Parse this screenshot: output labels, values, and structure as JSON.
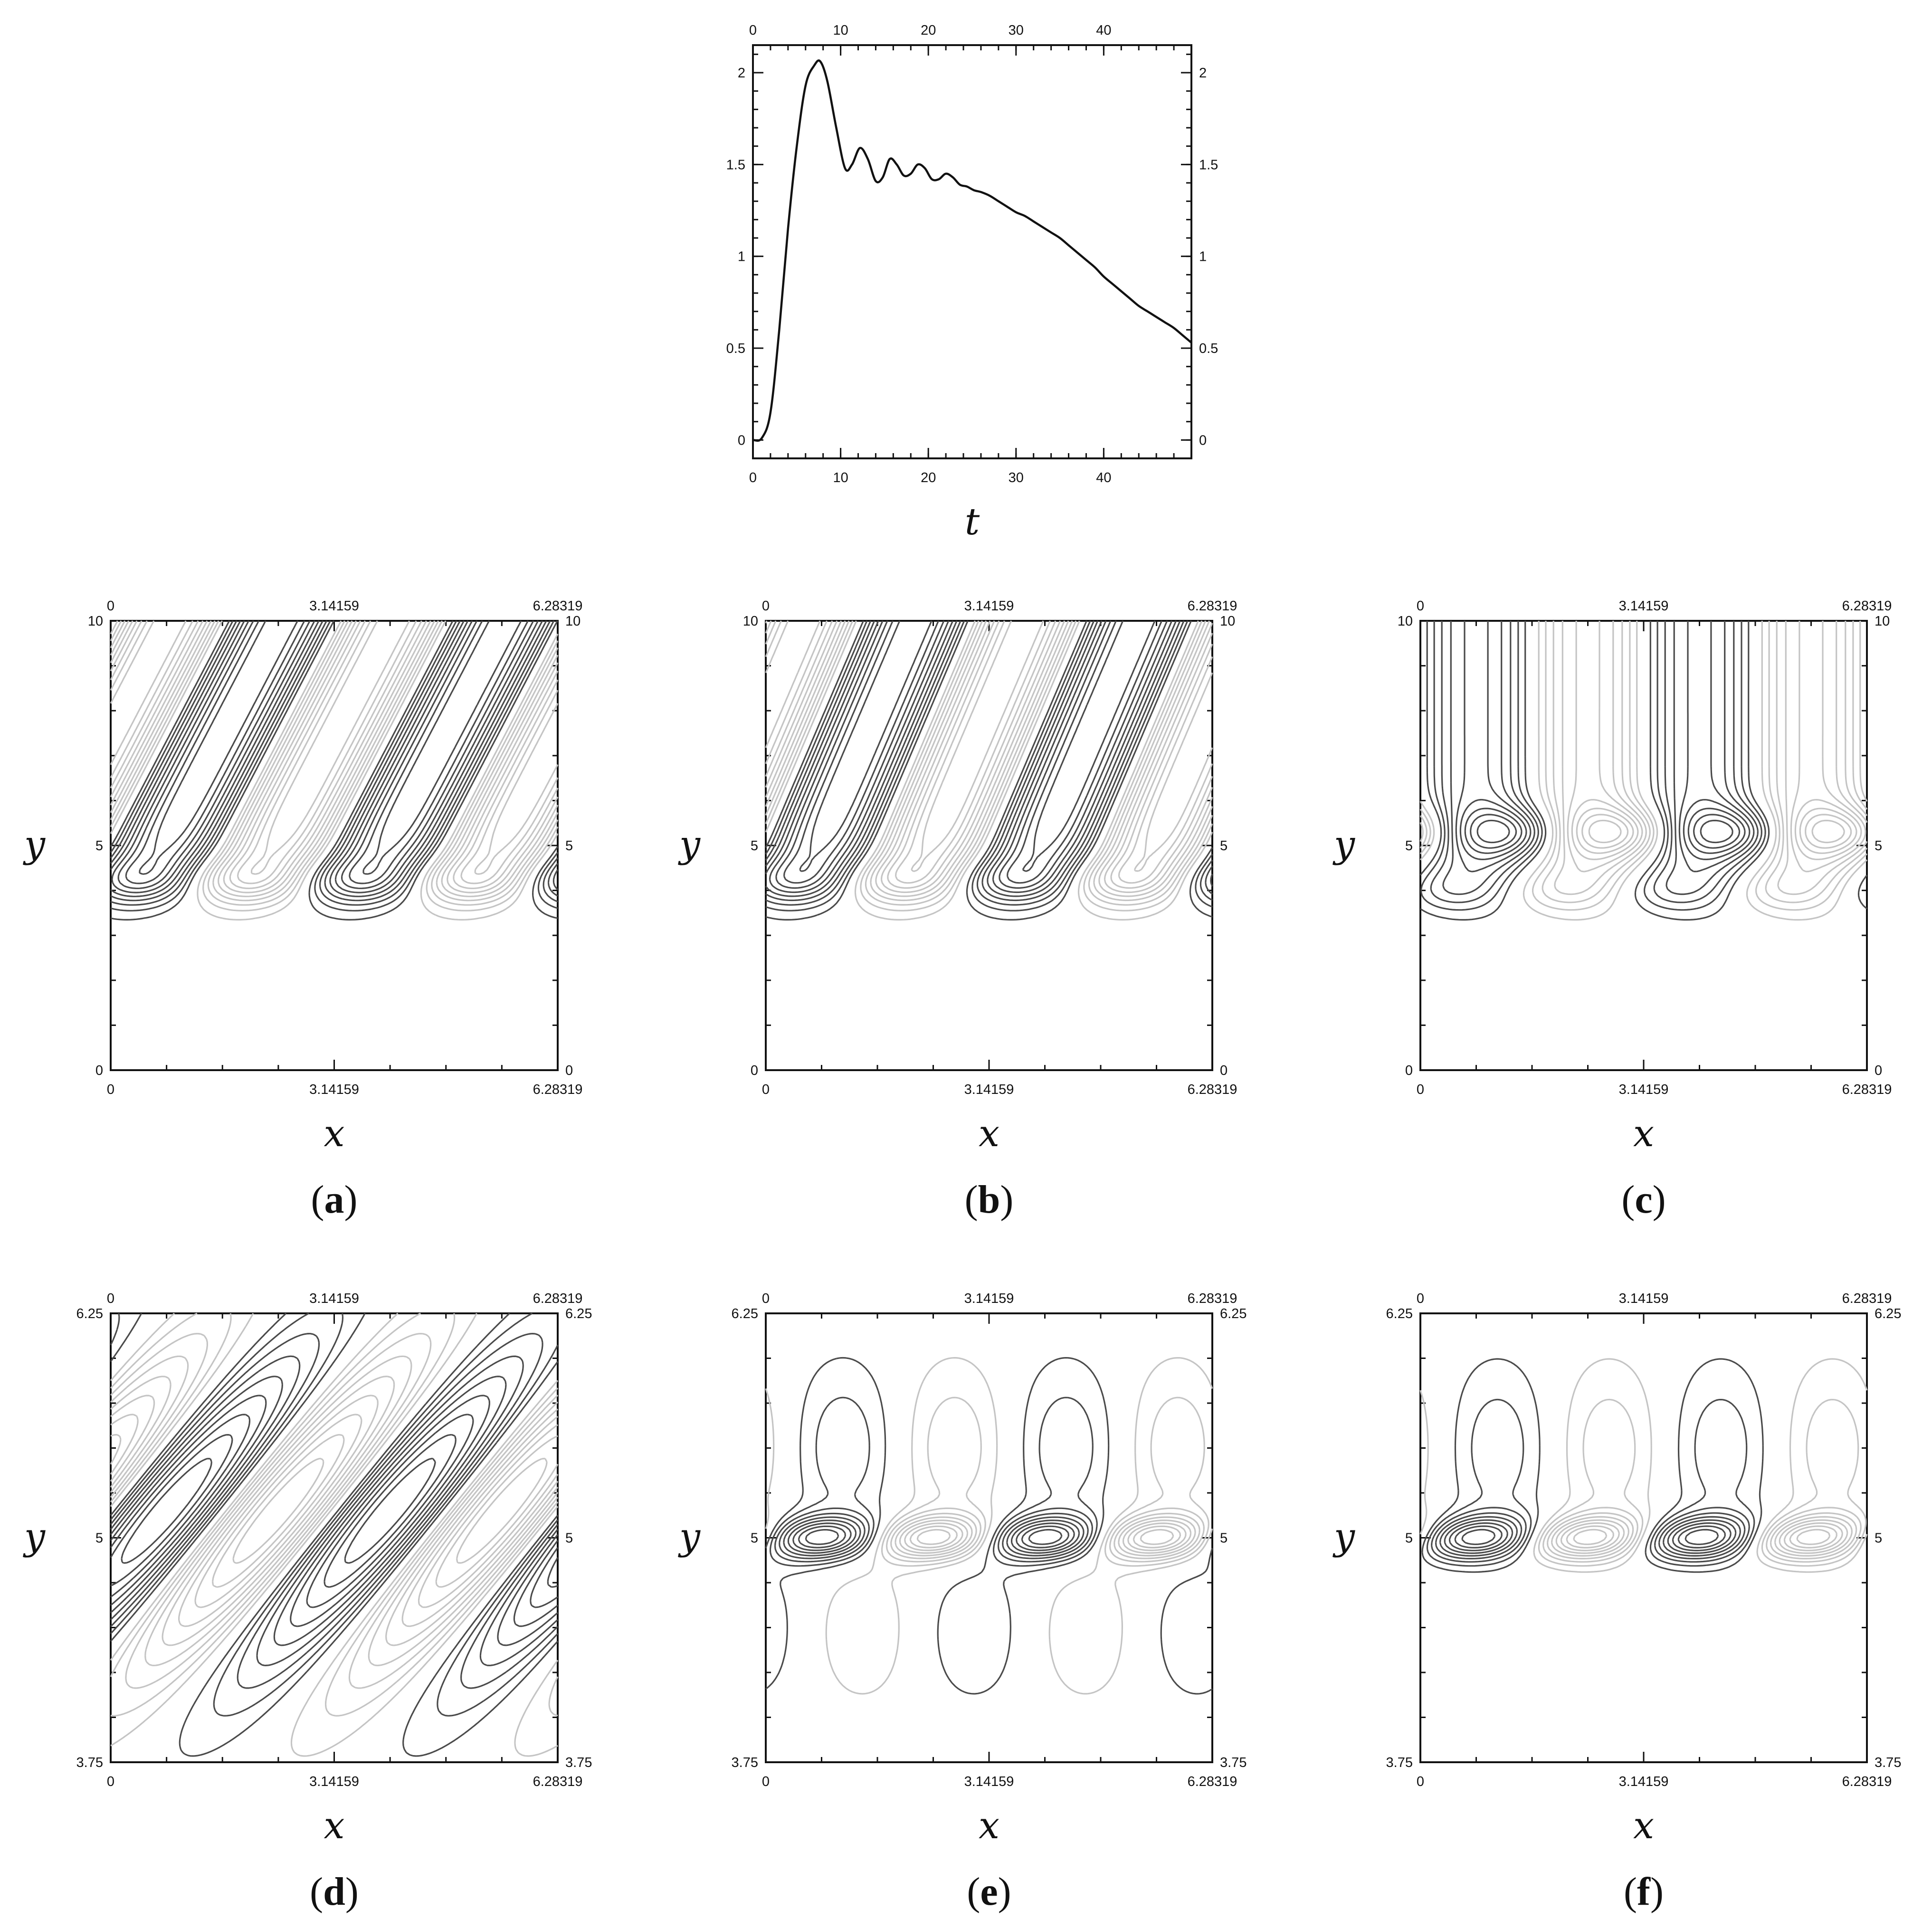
{
  "chart_data": [
    {
      "id": "top",
      "type": "line",
      "xlabel": "t",
      "ylabel": "",
      "xlim": [
        0,
        50
      ],
      "ylim": [
        -0.1,
        2.15
      ],
      "xticks": [
        0,
        10,
        20,
        30,
        40
      ],
      "yticks": [
        0,
        0.5,
        1,
        1.5,
        2
      ],
      "xtick_labels": [
        "0",
        "10",
        "20",
        "30",
        "40"
      ],
      "ytick_labels": [
        "0",
        "0.5",
        "1",
        "1.5",
        "2"
      ],
      "mirror_axes": true,
      "series": [
        {
          "color": "#111111",
          "x": [
            0,
            1,
            2,
            3,
            4,
            5,
            6,
            7,
            7.7,
            8.5,
            9.5,
            10.5,
            11.3,
            12.2,
            13.1,
            14,
            14.8,
            15.6,
            16.4,
            17.2,
            18,
            18.8,
            19.6,
            20.4,
            21.2,
            22,
            22.8,
            23.6,
            24.4,
            25.2,
            26,
            27,
            28,
            29,
            30,
            31,
            32,
            33,
            34,
            35,
            36,
            37,
            38,
            39,
            40,
            41,
            42,
            43,
            44,
            45,
            46,
            47,
            48,
            49,
            50
          ],
          "y": [
            0.0,
            0.01,
            0.15,
            0.6,
            1.15,
            1.6,
            1.93,
            2.04,
            2.06,
            1.95,
            1.7,
            1.48,
            1.5,
            1.59,
            1.53,
            1.41,
            1.43,
            1.53,
            1.5,
            1.44,
            1.45,
            1.5,
            1.48,
            1.42,
            1.42,
            1.45,
            1.43,
            1.39,
            1.38,
            1.36,
            1.35,
            1.33,
            1.3,
            1.27,
            1.24,
            1.22,
            1.19,
            1.16,
            1.13,
            1.1,
            1.06,
            1.02,
            0.98,
            0.94,
            0.89,
            0.85,
            0.81,
            0.77,
            0.73,
            0.7,
            0.67,
            0.64,
            0.61,
            0.57,
            0.53
          ]
        }
      ]
    },
    {
      "id": "a",
      "type": "contour",
      "xlabel": "x",
      "ylabel": "y",
      "xlim": [
        0,
        6.28319
      ],
      "ylim": [
        0,
        10
      ],
      "xticks": [
        0,
        3.14159,
        6.28319
      ],
      "yticks": [
        0,
        5,
        10
      ],
      "xtick_labels": [
        "0",
        "3.14159",
        "6.28319"
      ],
      "ytick_labels": [
        "0",
        "5",
        "10"
      ],
      "mirror_axes": true,
      "field": {
        "style": "bands",
        "periods": 2,
        "y_base": 4.2,
        "y_center": 5.1,
        "tilt": 0.55,
        "bottom_lobes": true
      },
      "levels": 9,
      "label": {
        "open": "(",
        "letter": "a",
        "close": ")"
      }
    },
    {
      "id": "b",
      "type": "contour",
      "xlabel": "x",
      "ylabel": "y",
      "xlim": [
        0,
        6.28319
      ],
      "ylim": [
        0,
        10
      ],
      "xticks": [
        0,
        3.14159,
        6.28319
      ],
      "yticks": [
        0,
        5,
        10
      ],
      "xtick_labels": [
        "0",
        "3.14159",
        "6.28319"
      ],
      "ytick_labels": [
        "0",
        "5",
        "10"
      ],
      "mirror_axes": true,
      "field": {
        "style": "bands",
        "periods": 2,
        "y_base": 4.2,
        "y_center": 5.1,
        "tilt": 0.45,
        "bottom_lobes": true
      },
      "levels": 9,
      "label": {
        "open": "(",
        "letter": "b",
        "close": ")"
      }
    },
    {
      "id": "c",
      "type": "contour",
      "xlabel": "x",
      "ylabel": "y",
      "xlim": [
        0,
        6.28319
      ],
      "ylim": [
        0,
        10
      ],
      "xticks": [
        0,
        3.14159,
        6.28319
      ],
      "yticks": [
        0,
        5,
        10
      ],
      "xtick_labels": [
        "0",
        "3.14159",
        "6.28319"
      ],
      "ytick_labels": [
        "0",
        "5",
        "10"
      ],
      "mirror_axes": true,
      "field": {
        "style": "columns",
        "periods": 2,
        "y_base": 4.0,
        "y_center": 5.3,
        "tilt": 0.1,
        "bottom_lobes": true
      },
      "levels": 9,
      "label": {
        "open": "(",
        "letter": "c",
        "close": ")"
      }
    },
    {
      "id": "d",
      "type": "contour",
      "xlabel": "x",
      "ylabel": "y",
      "xlim": [
        0,
        6.28319
      ],
      "ylim": [
        3.75,
        6.25
      ],
      "xticks": [
        0,
        3.14159,
        6.28319
      ],
      "yticks": [
        3.75,
        5,
        6.25
      ],
      "xtick_labels": [
        "0",
        "3.14159",
        "6.28319"
      ],
      "ytick_labels": [
        "3.75",
        "5",
        "6.25"
      ],
      "mirror_axes": true,
      "field": {
        "style": "tilted",
        "periods": 2,
        "y_center": 5.15,
        "tilt": 0.32
      },
      "levels": 9,
      "label": {
        "open": "(",
        "letter": "d",
        "close": ")"
      }
    },
    {
      "id": "e",
      "type": "contour",
      "xlabel": "x",
      "ylabel": "y",
      "xlim": [
        0,
        6.28319
      ],
      "ylim": [
        3.75,
        6.25
      ],
      "xticks": [
        0,
        3.14159,
        6.28319
      ],
      "yticks": [
        3.75,
        5,
        6.25
      ],
      "xtick_labels": [
        "0",
        "3.14159",
        "6.28319"
      ],
      "ytick_labels": [
        "3.75",
        "5",
        "6.25"
      ],
      "mirror_axes": true,
      "field": {
        "style": "layer",
        "periods": 2,
        "y_center": 5.0,
        "tilt": 0.08,
        "plumes": true
      },
      "levels": 9,
      "label": {
        "open": "(",
        "letter": "e",
        "close": ")"
      }
    },
    {
      "id": "f",
      "type": "contour",
      "xlabel": "x",
      "ylabel": "y",
      "xlim": [
        0,
        6.28319
      ],
      "ylim": [
        3.75,
        6.25
      ],
      "xticks": [
        0,
        3.14159,
        6.28319
      ],
      "yticks": [
        3.75,
        5,
        6.25
      ],
      "xtick_labels": [
        "0",
        "3.14159",
        "6.28319"
      ],
      "ytick_labels": [
        "3.75",
        "5",
        "6.25"
      ],
      "mirror_axes": true,
      "field": {
        "style": "layer",
        "periods": 2,
        "y_center": 5.0,
        "tilt": 0.06,
        "plumes": false
      },
      "levels": 9,
      "label": {
        "open": "(",
        "letter": "f",
        "close": ")"
      }
    }
  ]
}
